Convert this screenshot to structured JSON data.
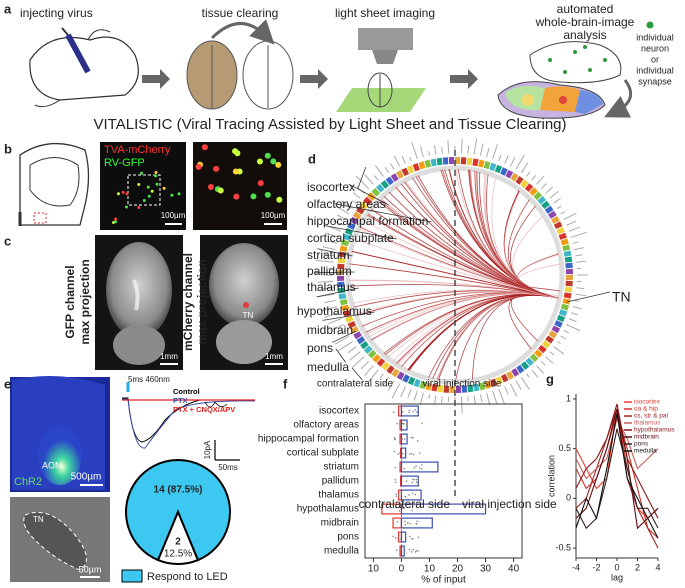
{
  "panels": {
    "a": {
      "label": "a",
      "step1": "injecting virus",
      "step2": "tissue clearing",
      "step3": "light sheet imaging",
      "step4": [
        "automated",
        "whole-brain-image",
        "analysis"
      ],
      "legend": [
        "individual",
        "neuron",
        "or",
        "individual",
        "synapse"
      ],
      "caption": "VITALISTIC (Viral Tracing Assisted by Light Sheet and Tissue Clearing)"
    },
    "b": {
      "label": "b",
      "stain1": "TVA-mCherry",
      "stain2": "RV-GFP",
      "scale1": "100µm",
      "scale2": "100µm"
    },
    "c": {
      "label": "c",
      "title1": [
        "GFP channel",
        "max projection"
      ],
      "title2": [
        "mCherry channel",
        "max projection"
      ],
      "marker": "TN",
      "scale1": "1mm",
      "scale2": "1mm"
    },
    "d": {
      "label": "d",
      "regions": [
        "isocortex",
        "olfactory areas",
        "hippocampal formation",
        "cortical subplate",
        "striatum",
        "pallidum",
        "thalamus",
        "hypothalamus",
        "midbrain",
        "pons",
        "medulla"
      ],
      "target": "TN",
      "left_side": "contralateral side",
      "right_side": "viral injection side"
    },
    "e": {
      "label": "e",
      "region": "AON",
      "virus": "ChR2",
      "scale1": "500µm",
      "stim": "5ms 460nm",
      "traces": [
        "Control",
        "PTX",
        "PTX + CNQX/APV"
      ],
      "scale_y": "10pA",
      "scale_x": "50ms",
      "marker": "TN",
      "scale2": "50µm"
    },
    "f": {
      "label": "f"
    },
    "g": {
      "label": "g"
    }
  },
  "chart_data": [
    {
      "type": "hbar",
      "categories": [
        "isocortex",
        "olfactory areas",
        "hippocampal formation",
        "cortical subplate",
        "striatum",
        "pallidum",
        "thalamus",
        "hypothalamus",
        "midbrain",
        "pons",
        "medulla"
      ],
      "series": [
        {
          "name": "contralateral side",
          "color": "#e8352b",
          "values": [
            -1,
            -0.5,
            -0.5,
            -0.3,
            -0.5,
            -0.3,
            -1,
            -7,
            -3,
            -1,
            -0.5
          ]
        },
        {
          "name": "viral injection side",
          "color": "#3a4fa8",
          "values": [
            6,
            2,
            2,
            1.5,
            13,
            6,
            7,
            30,
            11,
            1.5,
            1
          ]
        }
      ],
      "xlabel": "% of input",
      "xlim": [
        -13,
        43
      ],
      "xticks": [
        {
          "value": -10,
          "label": "10"
        },
        0,
        10,
        20,
        30,
        40
      ]
    },
    {
      "type": "line",
      "x": [
        -4,
        -3,
        -2,
        -1,
        0,
        1,
        2,
        3,
        4
      ],
      "xlabel": "lag",
      "ylabel": "correlation",
      "xlim": [
        -4,
        4
      ],
      "xticks": [
        -4,
        -2,
        0,
        2,
        4
      ],
      "ylim": [
        -0.6,
        1.05
      ],
      "yticks": [
        -0.5,
        0,
        0.5,
        1
      ],
      "series": [
        {
          "name": "isocortex",
          "color": "#f03c2e",
          "values": [
            0.5,
            0.3,
            0.1,
            0.2,
            0.9,
            0.3,
            -0.1,
            -0.2,
            -0.1
          ]
        },
        {
          "name": "oa & hip",
          "color": "#d0312d",
          "values": [
            0.3,
            0.1,
            0.2,
            0.5,
            0.85,
            0.5,
            0.1,
            -0.3,
            -0.4
          ]
        },
        {
          "name": "cs, str & pal",
          "color": "#a8201f",
          "values": [
            -0.1,
            0.0,
            0.3,
            0.6,
            0.9,
            0.2,
            -0.1,
            -0.3,
            -0.5
          ]
        },
        {
          "name": "thalamus",
          "color": "#c85a5a",
          "values": [
            0.4,
            0.2,
            0.3,
            0.4,
            0.8,
            0.6,
            0.3,
            0.4,
            0.5
          ]
        },
        {
          "name": "hypothalamus",
          "color": "#8c1414",
          "values": [
            0.1,
            0.3,
            0.4,
            0.6,
            0.95,
            0.4,
            0.2,
            0.0,
            -0.2
          ]
        },
        {
          "name": "midbrain",
          "color": "#5a0d0d",
          "values": [
            -0.2,
            -0.1,
            0.2,
            0.5,
            0.9,
            0.4,
            -0.3,
            -0.2,
            -0.1
          ]
        },
        {
          "name": "pons",
          "color": "#3a2020",
          "values": [
            -0.1,
            -0.3,
            -0.2,
            0.2,
            0.7,
            0.3,
            -0.1,
            -0.1,
            -0.3
          ]
        },
        {
          "name": "medulla",
          "color": "#111111",
          "values": [
            -0.3,
            0.0,
            -0.2,
            0.3,
            0.85,
            0.2,
            0.0,
            -0.2,
            -0.4
          ]
        }
      ]
    },
    {
      "type": "pie",
      "values": [
        14,
        2
      ],
      "value_labels": [
        "14 (87.5%)",
        "2"
      ],
      "percent_label": "12.5%",
      "colors": [
        "#3cc8f0",
        "#ffffff"
      ],
      "legend": "Respond to LED"
    }
  ]
}
